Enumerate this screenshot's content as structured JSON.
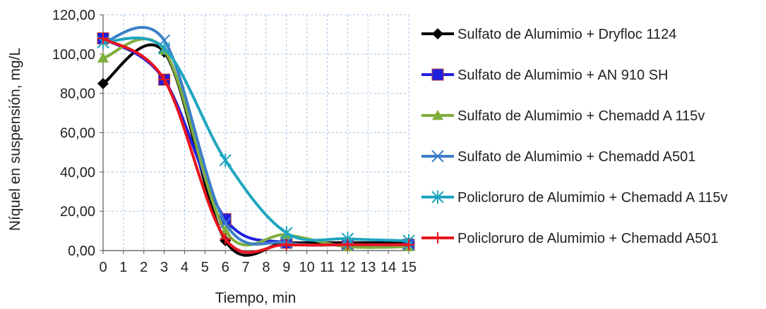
{
  "chart_data": {
    "type": "line",
    "xlabel": "Tiempo, min",
    "ylabel": "Níquel en suspensión, mg/L",
    "categories": [
      "0",
      "1",
      "2",
      "3",
      "4",
      "5",
      "6",
      "7",
      "8",
      "9",
      "10",
      "11",
      "12",
      "13",
      "14",
      "15"
    ],
    "ylim": [
      0,
      120
    ],
    "yticks": [
      "0,00",
      "20,00",
      "40,00",
      "60,00",
      "80,00",
      "100,00",
      "120,00"
    ],
    "grid": "dashed",
    "legend": "right",
    "series": [
      {
        "name": "Sulfato de Alumimio + Dryfloc 1124",
        "color": "#000000",
        "marker": "diamond",
        "points": [
          [
            0,
            85
          ],
          [
            3,
            101
          ],
          [
            6,
            5
          ],
          [
            9,
            4
          ],
          [
            12,
            4
          ],
          [
            15,
            4
          ]
        ]
      },
      {
        "name": "Sulfato de Alumimio + AN 910 SH",
        "color": "#1f1fe0",
        "marker": "square",
        "points": [
          [
            0,
            108
          ],
          [
            3,
            87
          ],
          [
            6,
            16
          ],
          [
            9,
            4
          ],
          [
            12,
            3
          ],
          [
            15,
            3
          ]
        ]
      },
      {
        "name": "Sulfato de Alumimio + Chemadd A 115v",
        "color": "#7fae3c",
        "marker": "triangle",
        "points": [
          [
            0,
            98
          ],
          [
            3,
            102
          ],
          [
            6,
            10
          ],
          [
            9,
            8
          ],
          [
            12,
            2
          ],
          [
            15,
            2
          ]
        ]
      },
      {
        "name": "Sulfato de Alumimio + Chemadd A501",
        "color": "#3c7fc8",
        "marker": "x",
        "points": [
          [
            0,
            106
          ],
          [
            3,
            107
          ],
          [
            6,
            14
          ],
          [
            9,
            4
          ],
          [
            12,
            3
          ],
          [
            15,
            3
          ]
        ]
      },
      {
        "name": "Policloruro de Alumimio + Chemadd A 115v",
        "color": "#1fa5be",
        "marker": "star",
        "points": [
          [
            0,
            106
          ],
          [
            3,
            103
          ],
          [
            6,
            46
          ],
          [
            9,
            9
          ],
          [
            12,
            6
          ],
          [
            15,
            5
          ]
        ]
      },
      {
        "name": "Policloruro de Alumimio + Chemadd A501",
        "color": "#e8151e",
        "marker": "plus",
        "points": [
          [
            0,
            108
          ],
          [
            3,
            87
          ],
          [
            6,
            6
          ],
          [
            9,
            3
          ],
          [
            12,
            3
          ],
          [
            15,
            3
          ]
        ]
      }
    ]
  }
}
